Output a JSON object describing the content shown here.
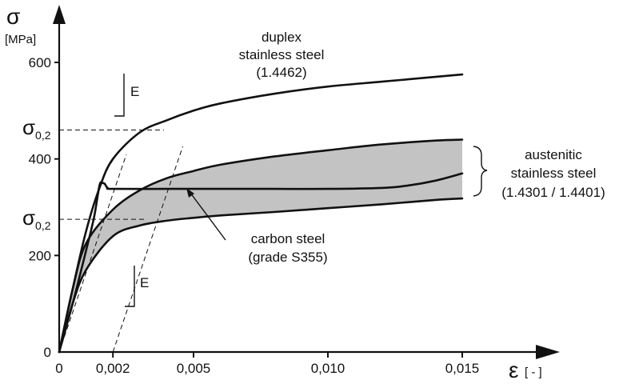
{
  "chart_data": {
    "type": "line",
    "y_axis": {
      "symbol": "σ",
      "unit": "[MPa]",
      "ticks": [
        0,
        200,
        400,
        600
      ],
      "proof_stress_label": "σ",
      "proof_stress_subscript": "0,2"
    },
    "x_axis": {
      "symbol": "ε",
      "unit": "[ - ]",
      "ticks": [
        {
          "value": 0,
          "label": "0"
        },
        {
          "value": 0.002,
          "label": "0,002"
        },
        {
          "value": 0.005,
          "label": "0,005"
        },
        {
          "value": 0.01,
          "label": "0,010"
        },
        {
          "value": 0.015,
          "label": "0,015"
        }
      ]
    },
    "xlim": [
      0,
      0.0185
    ],
    "ylim": [
      0,
      710
    ],
    "modulus_label": "E",
    "proof_stress_levels": [
      460,
      275
    ],
    "series": [
      {
        "name": "duplex stainless steel (1.4462)",
        "x": [
          0,
          0.0005,
          0.001,
          0.0015,
          0.002,
          0.003,
          0.004,
          0.005,
          0.006,
          0.008,
          0.01,
          0.012,
          0.014,
          0.015
        ],
        "y": [
          0,
          130,
          250,
          340,
          400,
          455,
          480,
          500,
          515,
          535,
          550,
          560,
          570,
          575
        ]
      },
      {
        "name": "carbon steel (grade S355)",
        "x": [
          0,
          0.0005,
          0.001,
          0.0013,
          0.0015,
          0.0016,
          0.0017,
          0.0018,
          0.002,
          0.004,
          0.006,
          0.008,
          0.01,
          0.012,
          0.013,
          0.014,
          0.015
        ],
        "y": [
          0,
          100,
          210,
          280,
          345,
          350,
          348,
          340,
          338,
          338,
          338,
          338,
          338,
          340,
          345,
          355,
          370
        ]
      },
      {
        "name": "austenitic stainless steel upper bound",
        "x": [
          0,
          0.0005,
          0.001,
          0.002,
          0.003,
          0.004,
          0.005,
          0.006,
          0.008,
          0.01,
          0.012,
          0.014,
          0.015
        ],
        "y": [
          0,
          130,
          225,
          295,
          335,
          360,
          375,
          388,
          405,
          418,
          430,
          438,
          440
        ]
      },
      {
        "name": "austenitic stainless steel lower bound",
        "x": [
          0,
          0.0005,
          0.001,
          0.002,
          0.003,
          0.004,
          0.005,
          0.006,
          0.008,
          0.01,
          0.012,
          0.014,
          0.015
        ],
        "y": [
          0,
          100,
          170,
          240,
          262,
          272,
          278,
          283,
          290,
          298,
          306,
          315,
          318
        ]
      }
    ],
    "annotations": {
      "duplex": [
        "duplex",
        "stainless steel",
        "(1.4462)"
      ],
      "austenitic": [
        "austenitic",
        "stainless steel",
        "(1.4301 / 1.4401)"
      ],
      "carbon": [
        "carbon steel",
        "(grade S355)"
      ]
    }
  }
}
